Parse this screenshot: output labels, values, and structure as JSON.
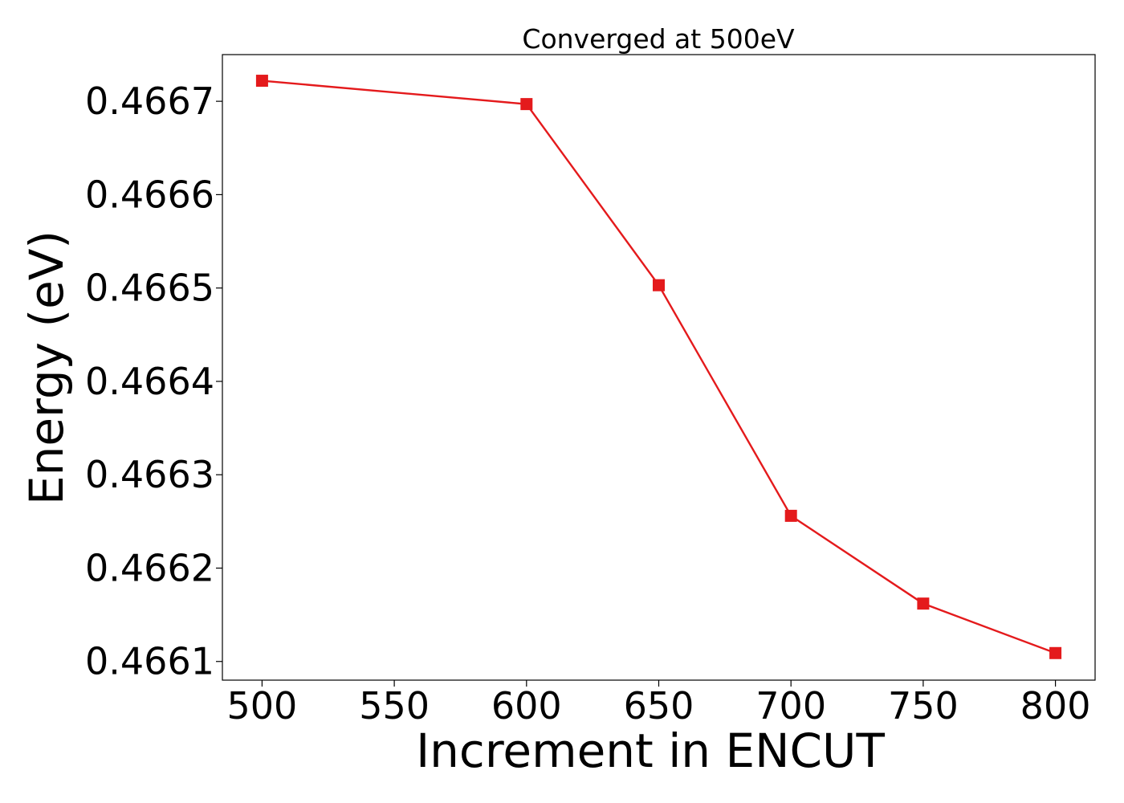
{
  "chart_data": {
    "type": "line",
    "title": "Converged at 500eV",
    "xlabel": "Increment in ENCUT",
    "ylabel": "Energy (eV)",
    "xlim": [
      485,
      815
    ],
    "ylim": [
      0.46608,
      0.46675
    ],
    "x_ticks": [
      500,
      550,
      600,
      650,
      700,
      750,
      800
    ],
    "x_tick_labels": [
      "500",
      "550",
      "600",
      "650",
      "700",
      "750",
      "800"
    ],
    "y_ticks": [
      0.4661,
      0.4662,
      0.4663,
      0.4664,
      0.4665,
      0.4666,
      0.4667
    ],
    "y_tick_labels": [
      "0.4661",
      "0.4662",
      "0.4663",
      "0.4664",
      "0.4665",
      "0.4666",
      "0.4667"
    ],
    "grid": false,
    "series": [
      {
        "x": [
          500,
          600,
          650,
          700,
          750,
          800
        ],
        "y": [
          0.466722,
          0.466697,
          0.466503,
          0.466256,
          0.466162,
          0.466109
        ],
        "color": "#e41a1c",
        "marker": "square"
      }
    ]
  }
}
